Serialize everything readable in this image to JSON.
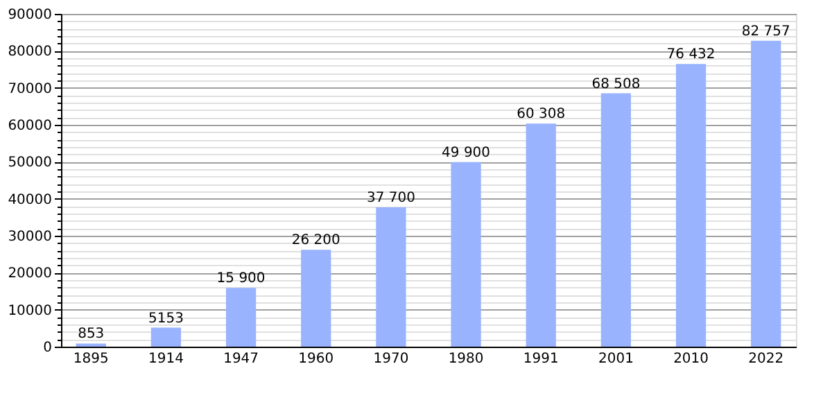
{
  "chart_data": {
    "type": "bar",
    "categories": [
      "1895",
      "1914",
      "1947",
      "1960",
      "1970",
      "1980",
      "1991",
      "2001",
      "2010",
      "2022"
    ],
    "values": [
      853,
      5153,
      15900,
      26200,
      37700,
      49900,
      60308,
      68508,
      76432,
      82757
    ],
    "value_labels": [
      "853",
      "5153",
      "15 900",
      "26 200",
      "37 700",
      "49 900",
      "60 308",
      "68 508",
      "76 432",
      "82 757"
    ],
    "color": "#99b3ff",
    "ylim": [
      0,
      90000
    ],
    "yticks": [
      0,
      {
        "value": 2000,
        "label": null
      },
      {
        "value": 4000,
        "label": null
      },
      {
        "value": 6000,
        "label": null
      },
      {
        "value": 8000,
        "label": null
      },
      10000,
      {
        "value": 12000,
        "label": null
      },
      {
        "value": 14000,
        "label": null
      },
      {
        "value": 16000,
        "label": null
      },
      {
        "value": 18000,
        "label": null
      },
      20000,
      {
        "value": 22000,
        "label": null
      },
      {
        "value": 24000,
        "label": null
      },
      {
        "value": 26000,
        "label": null
      },
      {
        "value": 28000,
        "label": null
      },
      30000,
      {
        "value": 32000,
        "label": null
      },
      {
        "value": 34000,
        "label": null
      },
      {
        "value": 36000,
        "label": null
      },
      {
        "value": 38000,
        "label": null
      },
      40000,
      {
        "value": 42000,
        "label": null
      },
      {
        "value": 44000,
        "label": null
      },
      {
        "value": 46000,
        "label": null
      },
      {
        "value": 48000,
        "label": null
      },
      50000,
      {
        "value": 52000,
        "label": null
      },
      {
        "value": 54000,
        "label": null
      },
      {
        "value": 56000,
        "label": null
      },
      {
        "value": 58000,
        "label": null
      },
      60000,
      {
        "value": 62000,
        "label": null
      },
      {
        "value": 64000,
        "label": null
      },
      {
        "value": 66000,
        "label": null
      },
      {
        "value": 68000,
        "label": null
      },
      70000,
      {
        "value": 72000,
        "label": null
      },
      {
        "value": 74000,
        "label": null
      },
      {
        "value": 76000,
        "label": null
      },
      {
        "value": 78000,
        "label": null
      },
      80000,
      {
        "value": 82000,
        "label": null
      },
      {
        "value": 84000,
        "label": null
      },
      {
        "value": 86000,
        "label": null
      },
      {
        "value": 88000,
        "label": null
      },
      90000
    ],
    "grid": "y"
  }
}
